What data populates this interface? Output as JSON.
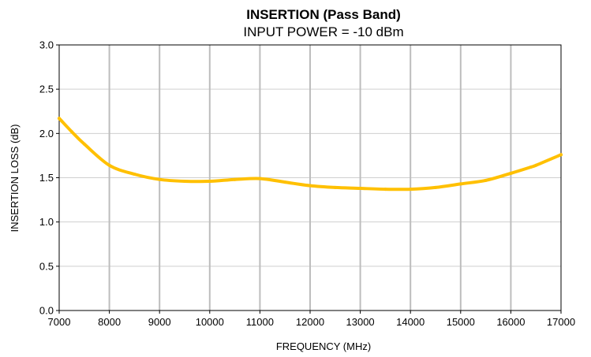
{
  "chart_data": {
    "type": "line",
    "title": "INSERTION (Pass Band)",
    "subtitle": "INPUT POWER = -10 dBm",
    "xlabel": "FREQUENCY (MHz)",
    "ylabel": "INSERTION LOSS (dB)",
    "xlim": [
      7000,
      17000
    ],
    "ylim": [
      0.0,
      3.0
    ],
    "x_ticks": [
      "7000",
      "8000",
      "9000",
      "10000",
      "11000",
      "12000",
      "13000",
      "14000",
      "15000",
      "16000",
      "17000"
    ],
    "y_ticks": [
      "0.0",
      "0.5",
      "1.0",
      "1.5",
      "2.0",
      "2.5",
      "3.0"
    ],
    "grid": "vertical-and-horizontal",
    "legend": "none",
    "series": [
      {
        "color": "#FFC000",
        "x": [
          7000,
          7250,
          7500,
          8000,
          8500,
          9000,
          9500,
          10000,
          10500,
          11000,
          11500,
          12000,
          12500,
          13000,
          13500,
          14000,
          14500,
          15000,
          15500,
          16000,
          16400,
          16500,
          17000
        ],
        "y": [
          2.17,
          2.02,
          1.88,
          1.64,
          1.54,
          1.48,
          1.46,
          1.46,
          1.48,
          1.49,
          1.45,
          1.41,
          1.39,
          1.38,
          1.37,
          1.37,
          1.39,
          1.43,
          1.47,
          1.55,
          1.62,
          1.64,
          1.76
        ]
      }
    ]
  }
}
